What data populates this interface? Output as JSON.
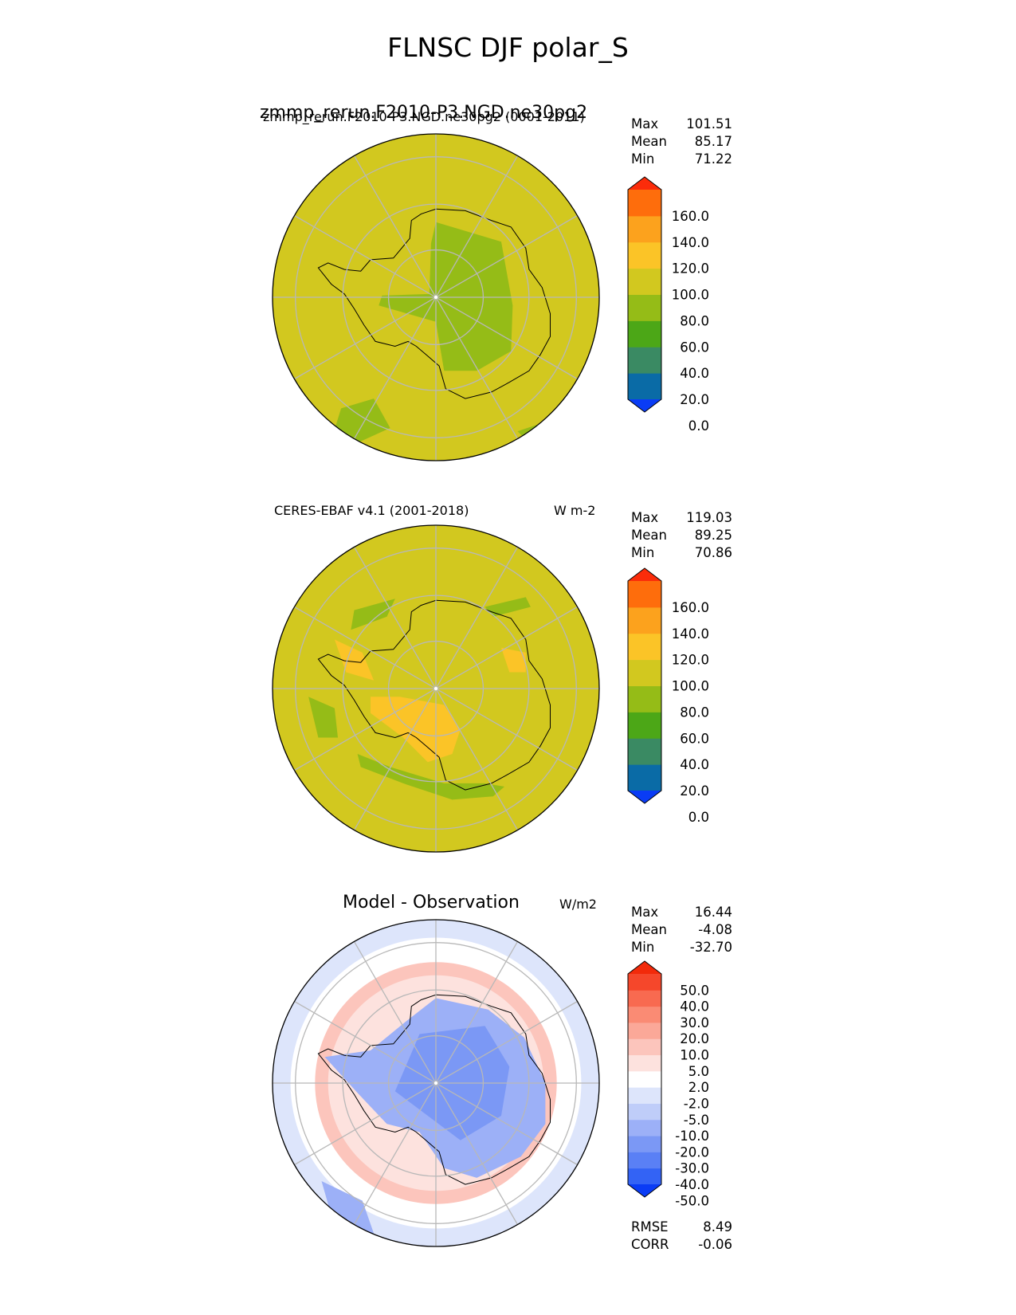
{
  "figure": {
    "title": "FLNSC DJF polar_S"
  },
  "colors": {
    "background": "#ffffff",
    "ocean_model": "#d2c81f",
    "grid": "#b8b8b8",
    "coast": "#000000"
  },
  "chart_data": [
    {
      "type": "heatmap",
      "projection": "south-polar-stereographic",
      "title": "zmmp_rerun.F2010-P3.NGD.ne30pg2",
      "title_overlap": "zmmp_rerun.F2010-P3.NGD.ne30pg2 (0001-2011)",
      "units": "",
      "stats": [
        {
          "label": "Max",
          "value": "101.51"
        },
        {
          "label": "Mean",
          "value": "85.17"
        },
        {
          "label": "Min",
          "value": "71.22"
        }
      ],
      "colorbar": {
        "ticks": [
          "160.0",
          "140.0",
          "120.0",
          "100.0",
          "80.0",
          "60.0",
          "40.0",
          "20.0",
          "0.0"
        ],
        "colors": [
          "#0a3cf5",
          "#0a6ba6",
          "#3a8a63",
          "#4ca717",
          "#95bc17",
          "#d2c81f",
          "#fbc427",
          "#fca21d",
          "#fe6d0c",
          "#fb2c0a"
        ],
        "extend": "both"
      },
      "grid": true,
      "regions": [
        "background ~85",
        "East Antarctic interior 60-80",
        "patch off Wilkes 60-80"
      ]
    },
    {
      "type": "heatmap",
      "projection": "south-polar-stereographic",
      "title": "CERES-EBAF v4.1 (2001-2018)",
      "units": "W m-2",
      "stats": [
        {
          "label": "Max",
          "value": "119.03"
        },
        {
          "label": "Mean",
          "value": "89.25"
        },
        {
          "label": "Min",
          "value": "70.86"
        }
      ],
      "colorbar": {
        "ticks": [
          "160.0",
          "140.0",
          "120.0",
          "100.0",
          "80.0",
          "60.0",
          "40.0",
          "20.0",
          "0.0"
        ],
        "colors": [
          "#0a3cf5",
          "#0a6ba6",
          "#3a8a63",
          "#4ca717",
          "#95bc17",
          "#d2c81f",
          "#fbc427",
          "#fca21d",
          "#fe6d0c",
          "#fb2c0a"
        ],
        "extend": "both"
      },
      "grid": true,
      "regions": [
        "background ~90",
        "Ross ice shelf 100-120",
        "Weddell margin 100-120",
        "sea-ice ring 60-80"
      ]
    },
    {
      "type": "heatmap",
      "projection": "south-polar-stereographic",
      "title": "Model - Observation",
      "units": "W/m2",
      "stats": [
        {
          "label": "Max",
          "value": "16.44"
        },
        {
          "label": "Mean",
          "value": "-4.08"
        },
        {
          "label": "Min",
          "value": "-32.70"
        }
      ],
      "colorbar": {
        "ticks": [
          "50.0",
          "40.0",
          "30.0",
          "20.0",
          "10.0",
          "5.0",
          "2.0",
          "-2.0",
          "-5.0",
          "-10.0",
          "-20.0",
          "-30.0",
          "-40.0",
          "-50.0"
        ],
        "colors": [
          "#0a3cf5",
          "#3363f5",
          "#5a80f5",
          "#7b98f5",
          "#9cb0f7",
          "#bfcdf9",
          "#dde5fb",
          "#ffffff",
          "#fde2de",
          "#fcc5bc",
          "#fba898",
          "#fa8b74",
          "#f86a50",
          "#f5472b",
          "#f22a0a"
        ],
        "extend": "both"
      },
      "grid": true,
      "extra_stats": [
        {
          "label": "RMSE",
          "value": "8.49"
        },
        {
          "label": "CORR",
          "value": "-0.06"
        }
      ],
      "regions": [
        "Antarctic interior -10 to -20",
        "sea-ice ring +5 to +20",
        "outer ocean -2 to -5"
      ]
    }
  ]
}
